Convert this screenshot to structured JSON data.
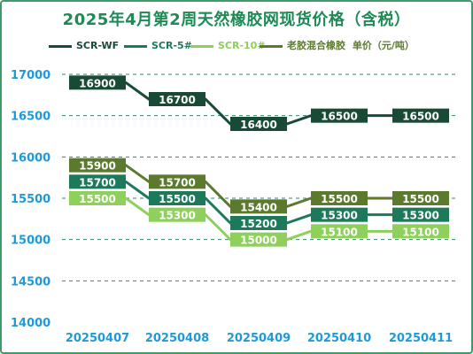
{
  "chart_data": {
    "type": "line",
    "title": "2025年4月第2周天然橡胶网现货价格（含税）",
    "ylabel": "",
    "xlabel": "",
    "categories": [
      "20250407",
      "20250408",
      "20250409",
      "20250410",
      "20250411"
    ],
    "ylim": [
      14000,
      17000
    ],
    "yticks": [
      14000,
      14500,
      15000,
      15500,
      16000,
      16500,
      17000
    ],
    "grid": "horizontal dashed",
    "legend_position": "top",
    "legend_extra_text": "单价（元/吨）",
    "series": [
      {
        "name": "SCR-WF",
        "color": "#184a35",
        "values": [
          16900,
          16700,
          16400,
          16500,
          16500
        ]
      },
      {
        "name": "SCR-5#",
        "color": "#1c7a5a",
        "values": [
          15700,
          15500,
          15200,
          15300,
          15300
        ]
      },
      {
        "name": "SCR-10#",
        "color": "#8fcf5c",
        "values": [
          15500,
          15300,
          15000,
          15100,
          15100
        ]
      },
      {
        "name": "老胶混合橡胶",
        "color": "#5b7a2e",
        "values": [
          15900,
          15700,
          15400,
          15500,
          15500
        ]
      }
    ]
  }
}
